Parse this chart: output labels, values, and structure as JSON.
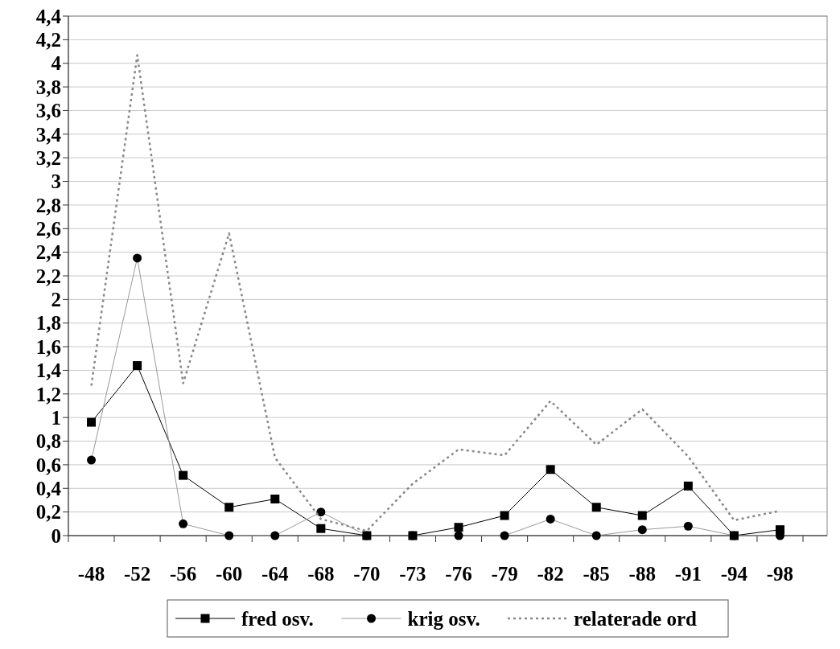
{
  "chart_data": {
    "type": "line",
    "categories": [
      "-48",
      "-52",
      "-56",
      "-60",
      "-64",
      "-68",
      "-70",
      "-73",
      "-76",
      "-79",
      "-82",
      "-85",
      "-88",
      "-91",
      "-94",
      "-98"
    ],
    "series": [
      {
        "name": "fred osv.",
        "color": "#000000",
        "marker": "square",
        "line_style": "solid",
        "values": [
          0.96,
          1.44,
          0.51,
          0.24,
          0.31,
          0.06,
          0,
          0,
          0.07,
          0.17,
          0.56,
          0.24,
          0.17,
          0.42,
          0,
          0.05
        ]
      },
      {
        "name": "krig osv.",
        "color": "#999999",
        "marker": "circle",
        "line_style": "solid",
        "values": [
          0.64,
          2.35,
          0.1,
          0,
          0,
          0.2,
          0,
          0,
          0,
          0,
          0.14,
          0,
          0.05,
          0.08,
          0,
          0
        ]
      },
      {
        "name": "relaterade ord",
        "color": "#888888",
        "marker": "none",
        "line_style": "dotted",
        "values": [
          1.27,
          4.07,
          1.29,
          2.56,
          0.66,
          0.14,
          0.04,
          0.44,
          0.73,
          0.68,
          1.14,
          0.77,
          1.07,
          0.67,
          0.13,
          0.21
        ]
      }
    ],
    "ylim": [
      0,
      4.4
    ],
    "yticks": [
      0,
      {
        "value": 0.2,
        "label": "0,2"
      },
      {
        "value": 0.4,
        "label": "0,4"
      },
      {
        "value": 0.6,
        "label": "0,6"
      },
      {
        "value": 0.8,
        "label": "0,8"
      },
      1,
      {
        "value": 1.2,
        "label": "1,2"
      },
      {
        "value": 1.4,
        "label": "1,4"
      },
      {
        "value": 1.6,
        "label": "1,6"
      },
      {
        "value": 1.8,
        "label": "1,8"
      },
      2,
      {
        "value": 2.2,
        "label": "2,2"
      },
      {
        "value": 2.4,
        "label": "2,4"
      },
      {
        "value": 2.6,
        "label": "2,6"
      },
      {
        "value": 2.8,
        "label": "2,8"
      },
      3,
      {
        "value": 3.2,
        "label": "3,2"
      },
      {
        "value": 3.4,
        "label": "3,4"
      },
      {
        "value": 3.6,
        "label": "3,6"
      },
      {
        "value": 3.8,
        "label": "3,8"
      },
      4,
      {
        "value": 4.2,
        "label": "4,2"
      },
      {
        "value": 4.4,
        "label": "4,4"
      }
    ],
    "grid": "y",
    "legend": "bottom"
  }
}
